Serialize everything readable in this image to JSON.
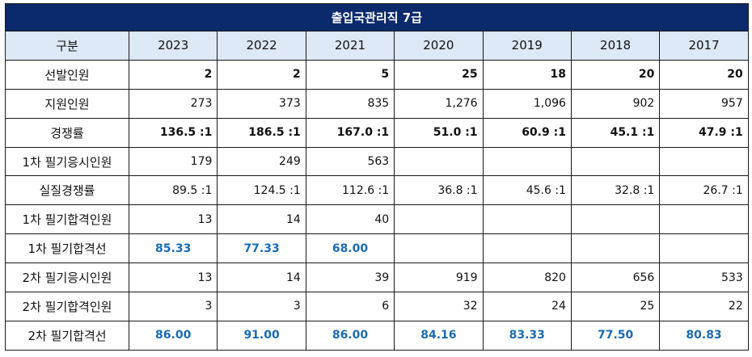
{
  "title": "출입국관리직 7급",
  "header": {
    "label": "구분",
    "years": [
      "2023",
      "2022",
      "2021",
      "2020",
      "2019",
      "2018",
      "2017"
    ]
  },
  "rows": [
    {
      "label": "선발인원",
      "style": "bold",
      "values": [
        "2",
        "2",
        "5",
        "25",
        "18",
        "20",
        "20"
      ]
    },
    {
      "label": "지원인원",
      "style": "normal",
      "values": [
        "273",
        "373",
        "835",
        "1,276",
        "1,096",
        "902",
        "957"
      ]
    },
    {
      "label": "경쟁률",
      "style": "bold",
      "values": [
        "136.5 :1",
        "186.5 :1",
        "167.0 :1",
        "51.0 :1",
        "60.9 :1",
        "45.1 :1",
        "47.9 :1"
      ]
    },
    {
      "label": "1차 필기응시인원",
      "style": "normal",
      "values": [
        "179",
        "249",
        "563",
        "",
        "",
        "",
        ""
      ]
    },
    {
      "label": "실질경쟁률",
      "style": "normal",
      "values": [
        "89.5 :1",
        "124.5 :1",
        "112.6 :1",
        "36.8 :1",
        "45.6 :1",
        "32.8 :1",
        "26.7 :1"
      ]
    },
    {
      "label": "1차 필기합격인원",
      "style": "normal",
      "values": [
        "13",
        "14",
        "40",
        "",
        "",
        "",
        ""
      ]
    },
    {
      "label": "1차 필기합격선",
      "style": "blue",
      "values": [
        "85.33",
        "77.33",
        "68.00",
        "",
        "",
        "",
        ""
      ]
    },
    {
      "label": "2차 필기응시인원",
      "style": "normal",
      "values": [
        "13",
        "14",
        "39",
        "919",
        "820",
        "656",
        "533"
      ]
    },
    {
      "label": "2차 필기합격인원",
      "style": "normal",
      "values": [
        "3",
        "3",
        "6",
        "32",
        "24",
        "25",
        "22"
      ]
    },
    {
      "label": "2차 필기합격선",
      "style": "blue",
      "values": [
        "86.00",
        "91.00",
        "86.00",
        "84.16",
        "83.33",
        "77.50",
        "80.83"
      ]
    }
  ],
  "colors": {
    "title_bg": "#0b2a6b",
    "header_bg": "#dde9f6",
    "highlight_text": "#1a6bb4"
  }
}
